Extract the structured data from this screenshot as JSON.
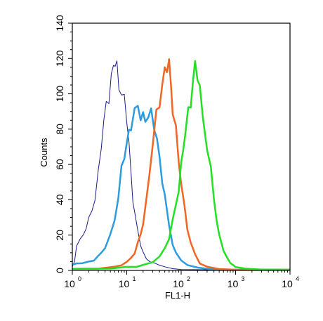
{
  "chart_data": {
    "type": "line",
    "xlabel": "FL1-H",
    "ylabel": "Counts",
    "x_scale": "log",
    "xlim": [
      1,
      10000
    ],
    "ylim": [
      0,
      140
    ],
    "grid": false,
    "legend": "none",
    "x_ticks": [
      {
        "base": "10",
        "exp": "0",
        "value": 1
      },
      {
        "base": "10",
        "exp": "1",
        "value": 10
      },
      {
        "base": "10",
        "exp": "2",
        "value": 100
      },
      {
        "base": "10",
        "exp": "3",
        "value": 1000
      },
      {
        "base": "10",
        "exp": "4",
        "value": 10000
      }
    ],
    "y_ticks": [
      0,
      20,
      40,
      60,
      80,
      100,
      120,
      140
    ],
    "series": [
      {
        "color": "#1a1a8c",
        "stroke_width": 1,
        "points": [
          [
            1.0,
            2
          ],
          [
            1.1,
            5
          ],
          [
            1.2,
            15
          ],
          [
            1.4,
            18
          ],
          [
            1.6,
            20
          ],
          [
            1.8,
            24
          ],
          [
            2.0,
            28
          ],
          [
            2.3,
            35
          ],
          [
            2.6,
            42
          ],
          [
            3.0,
            55
          ],
          [
            3.4,
            70
          ],
          [
            3.8,
            82
          ],
          [
            4.2,
            93
          ],
          [
            4.7,
            103
          ],
          [
            5.2,
            110
          ],
          [
            5.7,
            114
          ],
          [
            6.1,
            116
          ],
          [
            6.6,
            112
          ],
          [
            7.2,
            108
          ],
          [
            8.0,
            104
          ],
          [
            9.0,
            95
          ],
          [
            10,
            85
          ],
          [
            11,
            70
          ],
          [
            12,
            55
          ],
          [
            13,
            42
          ],
          [
            14,
            32
          ],
          [
            16,
            22
          ],
          [
            18,
            14
          ],
          [
            20,
            10
          ],
          [
            23,
            7
          ],
          [
            27,
            5
          ],
          [
            32,
            4
          ],
          [
            40,
            3
          ],
          [
            50,
            2
          ],
          [
            70,
            1
          ],
          [
            100,
            0.5
          ],
          [
            300,
            0.2
          ],
          [
            10000,
            0
          ]
        ]
      },
      {
        "color": "#2d9be0",
        "stroke_width": 2.5,
        "points": [
          [
            1.0,
            3
          ],
          [
            1.2,
            4
          ],
          [
            1.5,
            4
          ],
          [
            2.0,
            5
          ],
          [
            2.5,
            6
          ],
          [
            3.0,
            8
          ],
          [
            3.5,
            10
          ],
          [
            4.0,
            13
          ],
          [
            5.0,
            20
          ],
          [
            6.0,
            30
          ],
          [
            7.0,
            42
          ],
          [
            8.0,
            55
          ],
          [
            9.0,
            64
          ],
          [
            10,
            72
          ],
          [
            11,
            80
          ],
          [
            12,
            85
          ],
          [
            14,
            87
          ],
          [
            16,
            90
          ],
          [
            18,
            88
          ],
          [
            20,
            88
          ],
          [
            22,
            89
          ],
          [
            25,
            87
          ],
          [
            28,
            85
          ],
          [
            32,
            82
          ],
          [
            36,
            75
          ],
          [
            40,
            65
          ],
          [
            45,
            52
          ],
          [
            50,
            40
          ],
          [
            60,
            25
          ],
          [
            70,
            15
          ],
          [
            80,
            10
          ],
          [
            100,
            6
          ],
          [
            130,
            3
          ],
          [
            200,
            1.5
          ],
          [
            400,
            0.5
          ],
          [
            1000,
            0.2
          ],
          [
            10000,
            0
          ]
        ]
      },
      {
        "color": "#f26522",
        "stroke_width": 2.5,
        "points": [
          [
            1.0,
            1
          ],
          [
            3.0,
            1
          ],
          [
            6.0,
            2
          ],
          [
            8.0,
            3
          ],
          [
            10,
            5
          ],
          [
            12,
            7
          ],
          [
            14,
            10
          ],
          [
            16,
            15
          ],
          [
            18,
            20
          ],
          [
            20,
            28
          ],
          [
            23,
            40
          ],
          [
            26,
            55
          ],
          [
            30,
            70
          ],
          [
            35,
            85
          ],
          [
            40,
            98
          ],
          [
            45,
            108
          ],
          [
            50,
            113
          ],
          [
            55,
            115
          ],
          [
            60,
            112
          ],
          [
            65,
            105
          ],
          [
            70,
            95
          ],
          [
            80,
            80
          ],
          [
            90,
            62
          ],
          [
            100,
            48
          ],
          [
            115,
            35
          ],
          [
            130,
            25
          ],
          [
            150,
            16
          ],
          [
            180,
            9
          ],
          [
            220,
            4
          ],
          [
            300,
            2
          ],
          [
            500,
            0.8
          ],
          [
            1000,
            0.2
          ],
          [
            10000,
            0
          ]
        ]
      },
      {
        "color": "#22e022",
        "stroke_width": 2.5,
        "points": [
          [
            1.0,
            1
          ],
          [
            5.0,
            1
          ],
          [
            10,
            2
          ],
          [
            15,
            2
          ],
          [
            20,
            3
          ],
          [
            30,
            5
          ],
          [
            40,
            8
          ],
          [
            50,
            12
          ],
          [
            60,
            18
          ],
          [
            70,
            28
          ],
          [
            80,
            38
          ],
          [
            90,
            48
          ],
          [
            100,
            58
          ],
          [
            110,
            68
          ],
          [
            120,
            78
          ],
          [
            135,
            90
          ],
          [
            150,
            100
          ],
          [
            165,
            107
          ],
          [
            180,
            112
          ],
          [
            200,
            110
          ],
          [
            220,
            102
          ],
          [
            250,
            90
          ],
          [
            300,
            72
          ],
          [
            350,
            55
          ],
          [
            400,
            40
          ],
          [
            450,
            28
          ],
          [
            500,
            20
          ],
          [
            600,
            12
          ],
          [
            700,
            7
          ],
          [
            800,
            4
          ],
          [
            1000,
            2
          ],
          [
            1500,
            1
          ],
          [
            3000,
            0.5
          ],
          [
            10000,
            0
          ]
        ]
      }
    ]
  }
}
